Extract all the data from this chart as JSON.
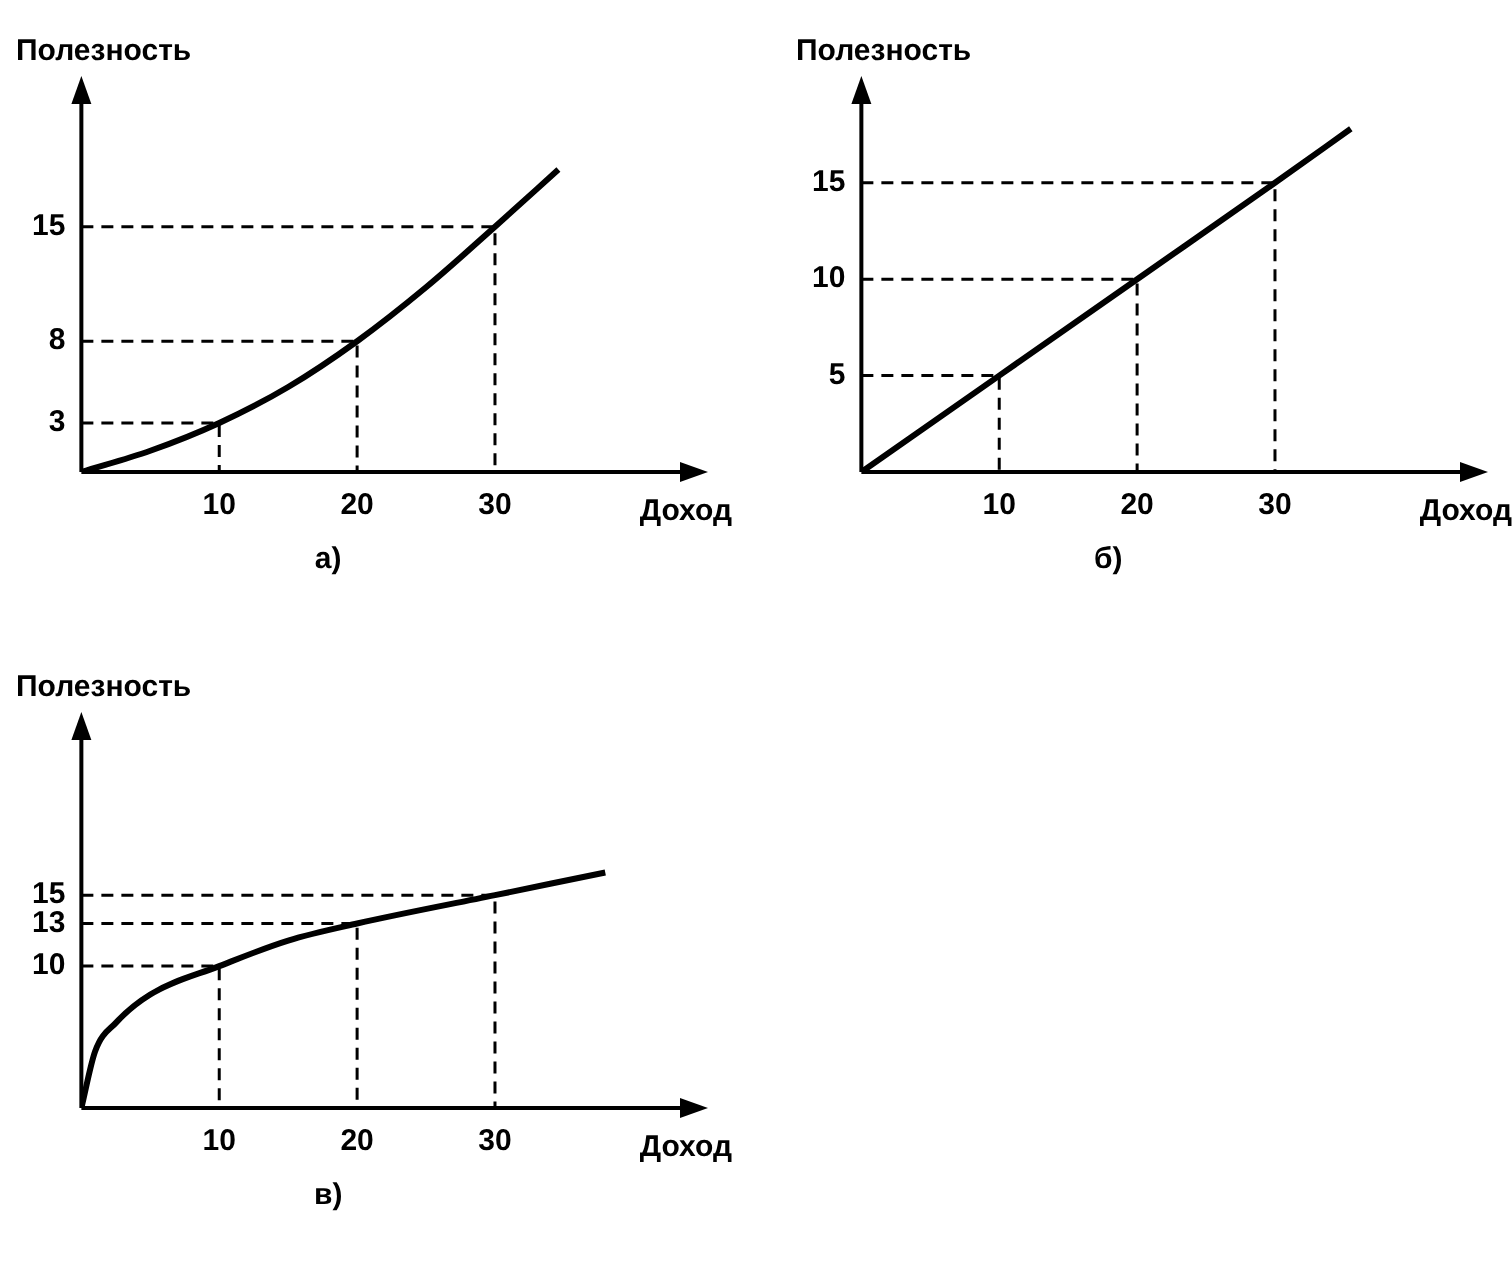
{
  "chart_data": [
    {
      "type": "line",
      "xlabel": "Доход",
      "ylabel": "Полезность",
      "annotations": [
        "а)"
      ],
      "xlim": [
        0,
        44
      ],
      "ylim": [
        0,
        23
      ],
      "xticks": [
        10,
        20,
        30
      ],
      "yticks": [
        3,
        8,
        15
      ],
      "grid": false,
      "series": [
        {
          "color": "#000000",
          "x": [
            0,
            5,
            10,
            15,
            20,
            25,
            30,
            34.6
          ],
          "values": [
            0,
            1.3,
            3,
            5.2,
            8,
            11.3,
            15,
            18.5
          ]
        },
        {
          "color": "#000000",
          "line_style": "dashed",
          "x": [
            0,
            10,
            10
          ],
          "values": [
            3,
            3,
            0
          ]
        },
        {
          "color": "#000000",
          "line_style": "dashed",
          "x": [
            0,
            20,
            20
          ],
          "values": [
            8,
            8,
            0
          ]
        },
        {
          "color": "#000000",
          "line_style": "dashed",
          "x": [
            0,
            30,
            30
          ],
          "values": [
            15,
            15,
            0
          ]
        }
      ]
    },
    {
      "type": "line",
      "xlabel": "Доход",
      "ylabel": "Полезность",
      "annotations": [
        "б)"
      ],
      "xlim": [
        0,
        44
      ],
      "ylim": [
        0,
        19.5
      ],
      "xticks": [
        10,
        20,
        30
      ],
      "yticks": [
        5,
        10,
        15
      ],
      "grid": false,
      "series": [
        {
          "color": "#000000",
          "x": [
            0,
            10,
            20,
            30,
            35.5
          ],
          "values": [
            0,
            5,
            10,
            15,
            17.8
          ]
        },
        {
          "color": "#000000",
          "line_style": "dashed",
          "x": [
            0,
            10,
            10
          ],
          "values": [
            5,
            5,
            0
          ]
        },
        {
          "color": "#000000",
          "line_style": "dashed",
          "x": [
            0,
            20,
            20
          ],
          "values": [
            10,
            10,
            0
          ]
        },
        {
          "color": "#000000",
          "line_style": "dashed",
          "x": [
            0,
            30,
            30
          ],
          "values": [
            15,
            15,
            0
          ]
        }
      ]
    },
    {
      "type": "line",
      "xlabel": "Доход",
      "ylabel": "Полезность",
      "annotations": [
        "в)"
      ],
      "xlim": [
        0,
        44
      ],
      "ylim": [
        0,
        26.5
      ],
      "xticks": [
        10,
        20,
        30
      ],
      "yticks": [
        10,
        13,
        15
      ],
      "grid": false,
      "series": [
        {
          "color": "#000000",
          "x": [
            0,
            1,
            2.5,
            5,
            10,
            15,
            20,
            30,
            38
          ],
          "values": [
            0,
            4,
            6,
            8,
            10,
            11.8,
            13,
            15,
            16.6
          ]
        },
        {
          "color": "#000000",
          "line_style": "dashed",
          "x": [
            0,
            10,
            10
          ],
          "values": [
            10,
            10,
            0
          ]
        },
        {
          "color": "#000000",
          "line_style": "dashed",
          "x": [
            0,
            20,
            20
          ],
          "values": [
            13,
            13,
            0
          ]
        },
        {
          "color": "#000000",
          "line_style": "dashed",
          "x": [
            0,
            30,
            30
          ],
          "values": [
            15,
            15,
            0
          ]
        }
      ]
    }
  ]
}
